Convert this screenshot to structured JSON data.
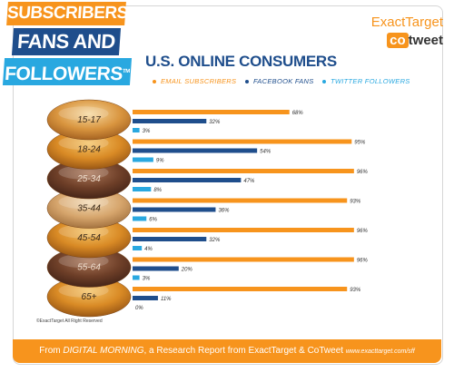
{
  "banners": [
    "SUBSCRIBERS",
    "FANS AND",
    "FOLLOWERS"
  ],
  "tm": "TM",
  "logos": {
    "top": "ExactTarget",
    "co": "co",
    "tweet": "tweet"
  },
  "title": "U.S. ONLINE CONSUMERS",
  "colors": {
    "email": "#f7941d",
    "facebook": "#1f4e8c",
    "twitter": "#29a8e0"
  },
  "legend": [
    {
      "label": "EMAIL SUBSCRIBERS",
      "color": "#f7941d"
    },
    {
      "label": "FACEBOOK FANS",
      "color": "#1f4e8c"
    },
    {
      "label": "TWITTER FOLLOWERS",
      "color": "#29a8e0"
    }
  ],
  "chart_data": {
    "type": "bar",
    "categories": [
      "15-17",
      "18-24",
      "25-34",
      "35-44",
      "45-54",
      "55-64",
      "65+"
    ],
    "series": [
      {
        "name": "EMAIL SUBSCRIBERS",
        "values": [
          68,
          95,
          96,
          93,
          96,
          96,
          93
        ]
      },
      {
        "name": "FACEBOOK FANS",
        "values": [
          32,
          54,
          47,
          36,
          32,
          20,
          11
        ]
      },
      {
        "name": "TWITTER FOLLOWERS",
        "values": [
          3,
          9,
          8,
          6,
          4,
          3,
          0
        ]
      }
    ],
    "value_suffix": "%",
    "xlim": [
      0,
      100
    ]
  },
  "copyright": "©ExactTarget All Right Reserved",
  "footer": {
    "prefix": "From ",
    "report": "DIGITAL MORNING",
    "suffix": ", a Research Report from ExactTarget & CoTweet ",
    "url": "www.exacttarget.com/sff"
  }
}
